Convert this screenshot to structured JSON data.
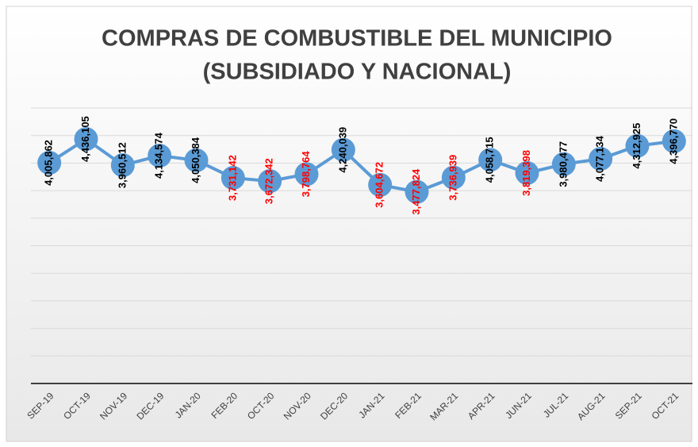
{
  "chart_data": {
    "type": "line",
    "title": [
      "COMPRAS DE COMBUSTIBLE DEL MUNICIPIO",
      "(SUBSIDIADO Y NACIONAL)"
    ],
    "categories": [
      "SEP-19",
      "OCT-19",
      "NOV-19",
      "DEC-19",
      "JAN-20",
      "FEB-20",
      "OCT-20",
      "NOV-20",
      "DEC-20",
      "JAN-21",
      "FEB-21",
      "MAR-21",
      "APR-21",
      "JUN-21",
      "JUL-21",
      "AUG-21",
      "SEP-21",
      "OCT-21"
    ],
    "series": [
      {
        "name": "Compras",
        "color": "#5b9bd5",
        "values": [
          4005862,
          4436105,
          3960512,
          4134574,
          4050384,
          3731142,
          3672342,
          3798764,
          4240039,
          3604672,
          3477824,
          3736939,
          4058715,
          3819398,
          3980477,
          4077134,
          4312925,
          4396770
        ],
        "value_labels": [
          "4,005,862",
          "4,436,105",
          "3,960,512",
          "4,134,574",
          "4,050,384",
          "3,731,142",
          "3,672,342",
          "3,798,764",
          "4,240,039",
          "3,604,672",
          "3,477,824",
          "3,736,939",
          "4,058,715",
          "3,819,398",
          "3,980,477",
          "4,077,134",
          "4,312,925",
          "4,396,770"
        ],
        "label_colors": [
          "#000000",
          "#000000",
          "#000000",
          "#000000",
          "#000000",
          "#ff0000",
          "#ff0000",
          "#ff0000",
          "#000000",
          "#ff0000",
          "#ff0000",
          "#ff0000",
          "#000000",
          "#ff0000",
          "#000000",
          "#000000",
          "#000000",
          "#000000"
        ]
      }
    ],
    "ylim": [
      0,
      5000000
    ],
    "yticks": [
      0,
      500000,
      1000000,
      1500000,
      2000000,
      2500000,
      3000000,
      3500000,
      4000000,
      4500000,
      5000000
    ],
    "grid": true
  }
}
